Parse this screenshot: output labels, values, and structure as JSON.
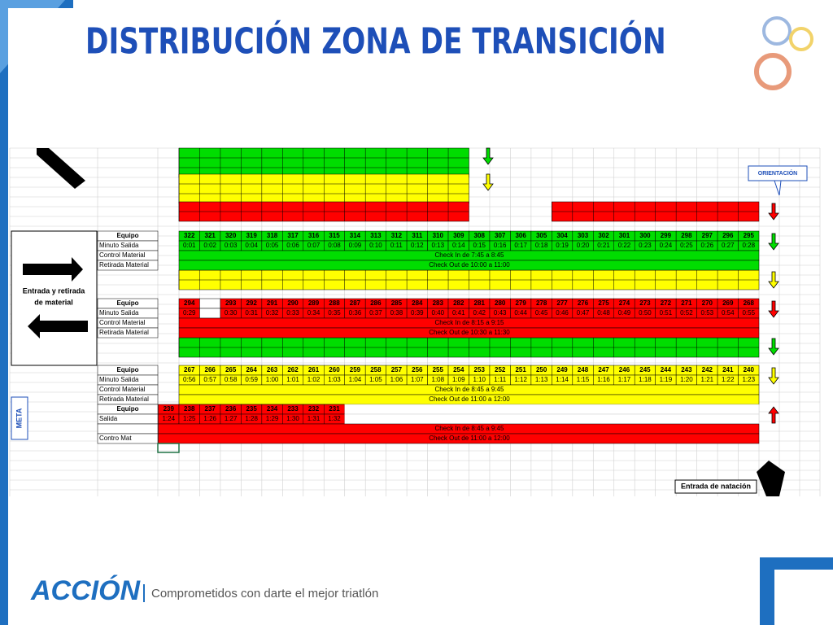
{
  "title": "DISTRIBUCIÓN ZONA DE TRANSICIÓN",
  "side_label": [
    "Entrada y retirada",
    "de material"
  ],
  "meta": "META",
  "orientation": "ORIENTACIÓN",
  "swim_entry": "Entrada de natación",
  "footer": {
    "brand": "ACCIÓN",
    "tagline": "Comprometidos con darte el mejor triatlón"
  },
  "blocks": [
    {
      "color": "#00dd00",
      "row_labels": [
        "Equipo",
        "Minuto Salida",
        "Control Material",
        "Retirada Material"
      ],
      "numbers": [
        322,
        321,
        320,
        319,
        318,
        317,
        316,
        315,
        314,
        313,
        312,
        311,
        310,
        309,
        308,
        307,
        306,
        305,
        304,
        303,
        302,
        301,
        300,
        299,
        298,
        297,
        296,
        295
      ],
      "times": [
        "0:01",
        "0:02",
        "0:03",
        "0:04",
        "0:05",
        "0:06",
        "0:07",
        "0:08",
        "0:09",
        "0:10",
        "0:11",
        "0:12",
        "0:13",
        "0:14",
        "0:15",
        "0:16",
        "0:17",
        "0:18",
        "0:19",
        "0:20",
        "0:21",
        "0:22",
        "0:23",
        "0:24",
        "0:25",
        "0:26",
        "0:27",
        "0:28"
      ],
      "check_in": "Check In de 7:45 a 8:45",
      "check_out": "Check Out de 10:00 a 11:00"
    },
    {
      "color": "#ff0000",
      "row_labels": [
        "Equipo",
        "Minuto Salida",
        "Control Material",
        "Retirada Material"
      ],
      "numbers": [
        294,
        null,
        293,
        292,
        291,
        290,
        289,
        288,
        287,
        286,
        285,
        284,
        283,
        282,
        281,
        280,
        279,
        278,
        277,
        276,
        275,
        274,
        273,
        272,
        271,
        270,
        269,
        268
      ],
      "times": [
        "0:29",
        null,
        "0:30",
        "0:31",
        "0:32",
        "0:33",
        "0:34",
        "0:35",
        "0:36",
        "0:37",
        "0:38",
        "0:39",
        "0:40",
        "0:41",
        "0:42",
        "0:43",
        "0:44",
        "0:45",
        "0:46",
        "0:47",
        "0:48",
        "0:49",
        "0:50",
        "0:51",
        "0:52",
        "0:53",
        "0:54",
        "0:55"
      ],
      "check_in": "Check In de 8:15 a 9:15",
      "check_out": "Check Out de 10:30 a 11:30"
    },
    {
      "color": "#ffff00",
      "row_labels": [
        "Equipo",
        "Minuto Salida",
        "Control Material",
        "Retirada Material"
      ],
      "numbers": [
        267,
        266,
        265,
        264,
        263,
        262,
        261,
        260,
        259,
        258,
        257,
        256,
        255,
        254,
        253,
        252,
        251,
        250,
        249,
        248,
        247,
        246,
        245,
        244,
        243,
        242,
        241,
        240
      ],
      "times": [
        "0:56",
        "0:57",
        "0:58",
        "0:59",
        "1:00",
        "1:01",
        "1:02",
        "1:03",
        "1:04",
        "1:05",
        "1:06",
        "1:07",
        "1:08",
        "1:09",
        "1:10",
        "1:11",
        "1:12",
        "1:13",
        "1:14",
        "1:15",
        "1:16",
        "1:17",
        "1:18",
        "1:19",
        "1:20",
        "1:21",
        "1:22",
        "1:23"
      ],
      "check_in": "Check In de 8:45 a 9:45",
      "check_out": "Check Out de 11:00 a 12:00"
    },
    {
      "color": "#ff0000",
      "row_labels": [
        "Equipo",
        "Salida",
        "",
        "Contro Mat"
      ],
      "numbers": [
        239,
        238,
        237,
        236,
        235,
        234,
        233,
        232,
        231
      ],
      "times": [
        "1:24",
        "1:25",
        "1:26",
        "1:27",
        "1:28",
        "1:29",
        "1:30",
        "1:31",
        "1:32"
      ],
      "check_in": "Check In de 8:45 a 9:45",
      "check_out": "Check Out de 11:00 a 12:00"
    }
  ]
}
